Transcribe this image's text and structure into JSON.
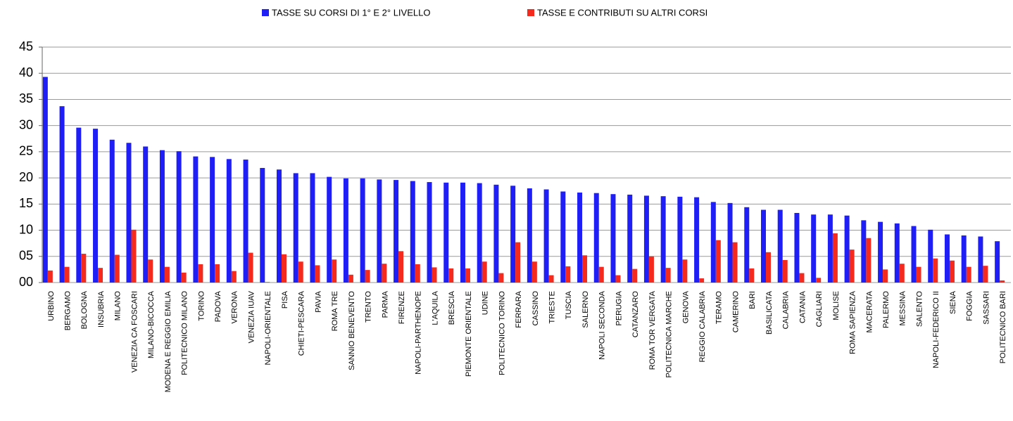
{
  "chart_data": {
    "type": "bar",
    "categories": [
      "URBINO",
      "BERGAMO",
      "BOLOGNA",
      "INSUBRIA",
      "MILANO",
      "VENEZIA CA FOSCARI",
      "MILANO-BICOCCA",
      "MODENA E REGGIO EMILIA",
      "POLITECNICO MILANO",
      "TORINO",
      "PADOVA",
      "VERONA",
      "VENEZIA IUAV",
      "NAPOLI-ORIENTALE",
      "PISA",
      "CHIETI-PESCARA",
      "PAVIA",
      "ROMA TRE",
      "SANNIO BENEVENTO",
      "TRENTO",
      "PARMA",
      "FIRENZE",
      "NAPOLI-PARTHENOPE",
      "L'AQUILA",
      "BRESCIA",
      "PIEMONTE ORIENTALE",
      "UDINE",
      "POLITECNICO TORINO",
      "FERRARA",
      "CASSINO",
      "TRIESTE",
      "TUSCIA",
      "SALERNO",
      "NAPOLI SECONDA",
      "PERUGIA",
      "CATANZARO",
      "ROMA TOR VERGATA",
      "POLITECNICA MARCHE",
      "GENOVA",
      "REGGIO CALABRIA",
      "TERAMO",
      "CAMERINO",
      "BARI",
      "BASILICATA",
      "CALABRIA",
      "CATANIA",
      "CAGLIARI",
      "MOLISE",
      "ROMA SAPIENZA",
      "MACERATA",
      "PALERMO",
      "MESSINA",
      "SALENTO",
      "NAPOLI-FEDERICO II",
      "SIENA",
      "FOGGIA",
      "SASSARI",
      "POLITECNICO BARI"
    ],
    "series": [
      {
        "name": "TASSE SU CORSI DI 1° E 2° LIVELLO",
        "color": "#1f1ff5",
        "values": [
          39.3,
          33.7,
          29.6,
          29.4,
          27.3,
          26.7,
          26.0,
          25.3,
          25.1,
          24.1,
          24.0,
          23.6,
          23.5,
          21.9,
          21.6,
          20.9,
          20.9,
          20.2,
          19.9,
          19.9,
          19.7,
          19.6,
          19.4,
          19.2,
          19.1,
          19.1,
          19.0,
          18.7,
          18.5,
          18.0,
          17.8,
          17.4,
          17.2,
          17.1,
          16.9,
          16.8,
          16.6,
          16.5,
          16.4,
          16.3,
          15.4,
          15.2,
          14.4,
          13.9,
          13.9,
          13.3,
          13.0,
          13.0,
          12.8,
          11.9,
          11.6,
          11.3,
          10.8,
          10.1,
          9.2,
          9.0,
          8.8,
          7.9
        ]
      },
      {
        "name": "TASSE E CONTRIBUTI SU ALTRI CORSI",
        "color": "#f52a1f",
        "values": [
          2.3,
          3.0,
          5.5,
          2.8,
          5.3,
          10.1,
          4.4,
          3.0,
          1.9,
          3.5,
          3.5,
          2.2,
          5.7,
          0.1,
          5.4,
          4.0,
          3.3,
          4.4,
          1.5,
          2.4,
          3.6,
          6.0,
          3.5,
          2.9,
          2.7,
          2.7,
          4.0,
          1.8,
          7.7,
          4.0,
          1.4,
          3.1,
          5.2,
          3.0,
          1.4,
          2.6,
          5.0,
          2.8,
          4.4,
          0.8,
          8.1,
          7.7,
          2.7,
          5.8,
          4.3,
          1.8,
          0.9,
          9.4,
          6.3,
          8.5,
          2.5,
          3.6,
          3.0,
          4.6,
          4.2,
          3.0,
          3.2,
          0.4
        ]
      }
    ],
    "ylim": [
      0,
      45
    ],
    "yticks": [
      {
        "value": 0,
        "label": "00"
      },
      {
        "value": 5,
        "label": "05"
      },
      10,
      15,
      20,
      25,
      30,
      35,
      40,
      45
    ],
    "grid": true
  }
}
